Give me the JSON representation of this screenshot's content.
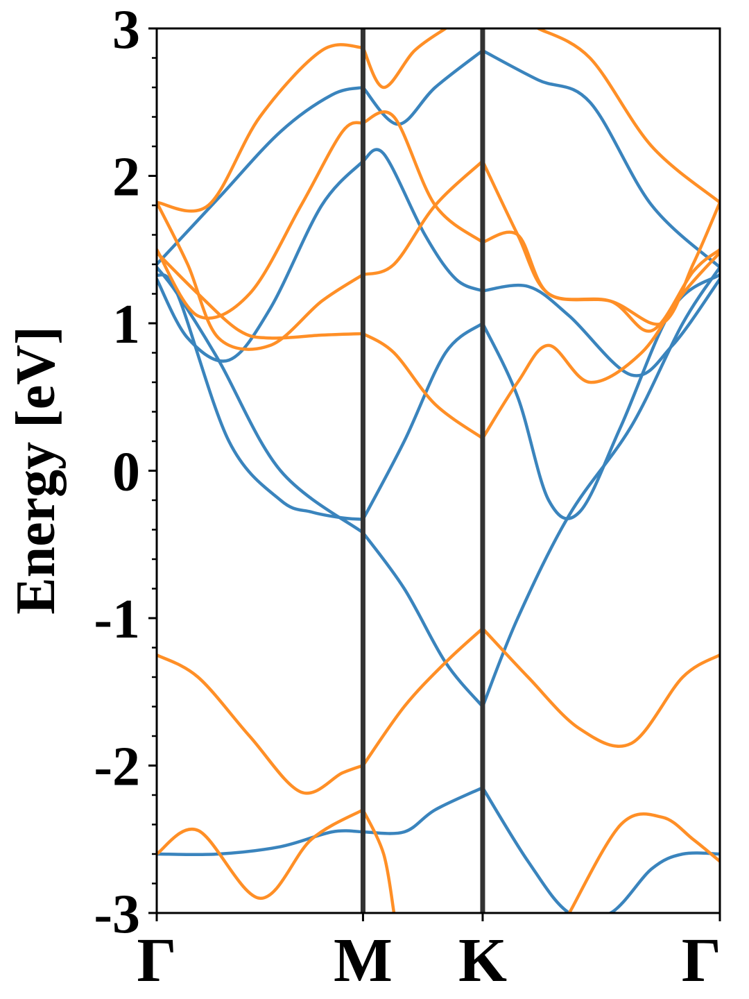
{
  "chart_data": {
    "type": "line",
    "title": "",
    "xlabel": "",
    "ylabel": "Energy [eV]",
    "ylim": [
      -3,
      3
    ],
    "yticks": [
      -3,
      -2,
      -1,
      0,
      1,
      2,
      3
    ],
    "ytick_labels": [
      "-3",
      "-2",
      "-1",
      "0",
      "1",
      "2",
      "3"
    ],
    "minor_ytick_step": 0.2,
    "xrange": [
      0,
      3
    ],
    "high_symmetry_points": [
      {
        "label": "Γ",
        "x": 0
      },
      {
        "label": "M",
        "x": 1
      },
      {
        "label": "K",
        "x": 1.58
      },
      {
        "label": "Γ",
        "x": 2.73
      }
    ],
    "vertical_lines_at": [
      1,
      1.58
    ],
    "grid": false,
    "legend": "none",
    "colors": {
      "blue": "#3a84bd",
      "orange": "#ff8f26",
      "vline": "#333333"
    },
    "series": [
      {
        "color": "blue",
        "x": [
          0,
          0.1,
          0.35,
          0.6,
          0.75,
          0.9,
          1.0
        ],
        "y": [
          1.33,
          1.2,
          0.2,
          -0.2,
          -0.28,
          -0.32,
          -0.33
        ]
      },
      {
        "color": "blue",
        "x": [
          1.0,
          1.2,
          1.4,
          1.58
        ],
        "y": [
          -0.33,
          0.2,
          0.8,
          1.0
        ]
      },
      {
        "color": "blue",
        "x": [
          1.58,
          1.75,
          1.9,
          2.05,
          2.25,
          2.5,
          2.73
        ],
        "y": [
          1.0,
          0.5,
          -0.2,
          -0.28,
          0.3,
          1.1,
          1.33
        ]
      },
      {
        "color": "blue",
        "x": [
          0,
          0.1,
          0.3,
          0.6,
          1.0
        ],
        "y": [
          1.38,
          1.2,
          0.75,
          0.0,
          -0.42
        ]
      },
      {
        "color": "blue",
        "x": [
          1.0,
          1.2,
          1.4,
          1.58
        ],
        "y": [
          -0.42,
          -0.8,
          -1.3,
          -1.6
        ]
      },
      {
        "color": "blue",
        "x": [
          1.58,
          1.75,
          2.0,
          2.3,
          2.55,
          2.73
        ],
        "y": [
          -1.6,
          -1.0,
          -0.3,
          0.3,
          1.0,
          1.38
        ]
      },
      {
        "color": "blue",
        "x": [
          0,
          0.15,
          0.35,
          0.55,
          0.8,
          1.0
        ],
        "y": [
          1.3,
          0.9,
          0.75,
          1.1,
          1.8,
          2.1
        ]
      },
      {
        "color": "blue",
        "x": [
          1.0,
          1.1,
          1.3,
          1.45,
          1.58
        ],
        "y": [
          2.1,
          2.15,
          1.6,
          1.3,
          1.22
        ]
      },
      {
        "color": "blue",
        "x": [
          1.58,
          1.8,
          2.0,
          2.3,
          2.5,
          2.73
        ],
        "y": [
          1.22,
          1.25,
          1.05,
          0.65,
          0.85,
          1.3
        ]
      },
      {
        "color": "blue",
        "x": [
          0,
          0.3,
          0.6,
          0.85,
          1.0
        ],
        "y": [
          1.4,
          1.85,
          2.3,
          2.55,
          2.6
        ]
      },
      {
        "color": "blue",
        "x": [
          1.0,
          1.17,
          1.35,
          1.58
        ],
        "y": [
          2.6,
          2.35,
          2.6,
          2.85
        ]
      },
      {
        "color": "blue",
        "x": [
          1.58,
          1.85,
          2.1,
          2.4,
          2.73
        ],
        "y": [
          2.85,
          2.65,
          2.5,
          1.8,
          1.38
        ]
      },
      {
        "color": "orange",
        "x": [
          0,
          0.2,
          0.4,
          0.55,
          0.8,
          1.0
        ],
        "y": [
          1.48,
          1.2,
          0.95,
          0.9,
          0.92,
          0.93
        ]
      },
      {
        "color": "orange",
        "x": [
          1.0,
          1.15,
          1.35,
          1.58
        ],
        "y": [
          0.93,
          0.8,
          0.45,
          0.22
        ]
      },
      {
        "color": "orange",
        "x": [
          1.58,
          1.75,
          1.9,
          2.1,
          2.35,
          2.55,
          2.73
        ],
        "y": [
          0.22,
          0.6,
          0.85,
          0.6,
          0.8,
          1.2,
          1.48
        ]
      },
      {
        "color": "orange",
        "x": [
          0,
          0.15,
          0.3,
          0.55,
          0.8,
          1.0
        ],
        "y": [
          1.82,
          1.4,
          0.9,
          0.85,
          1.15,
          1.33
        ]
      },
      {
        "color": "orange",
        "x": [
          1.0,
          1.15,
          1.35,
          1.58
        ],
        "y": [
          1.33,
          1.4,
          1.8,
          2.1
        ]
      },
      {
        "color": "orange",
        "x": [
          1.58,
          1.75,
          1.9,
          2.2,
          2.45,
          2.6,
          2.73
        ],
        "y": [
          2.1,
          1.6,
          1.2,
          1.15,
          1.0,
          1.4,
          1.82
        ]
      },
      {
        "color": "orange",
        "x": [
          0,
          0.2,
          0.45,
          0.7,
          0.9,
          1.0
        ],
        "y": [
          1.5,
          1.05,
          1.2,
          1.8,
          2.3,
          2.36
        ]
      },
      {
        "color": "orange",
        "x": [
          1.0,
          1.15,
          1.35,
          1.58
        ],
        "y": [
          2.36,
          2.4,
          1.8,
          1.55
        ]
      },
      {
        "color": "orange",
        "x": [
          1.58,
          1.75,
          1.9,
          2.2,
          2.4,
          2.6,
          2.73
        ],
        "y": [
          1.55,
          1.6,
          1.2,
          1.15,
          0.95,
          1.35,
          1.5
        ]
      },
      {
        "color": "orange",
        "x": [
          0,
          0.25,
          0.5,
          0.8,
          1.0
        ],
        "y": [
          1.82,
          1.8,
          2.4,
          2.85,
          2.87
        ]
      },
      {
        "color": "orange",
        "x": [
          1.0,
          1.1,
          1.25,
          1.4
        ],
        "y": [
          2.87,
          2.6,
          2.85,
          3.0
        ]
      },
      {
        "color": "orange",
        "x": [
          1.85,
          2.1,
          2.4,
          2.73
        ],
        "y": [
          3.0,
          2.8,
          2.2,
          1.82
        ]
      },
      {
        "color": "orange",
        "x": [
          0,
          0.2,
          0.45,
          0.7,
          0.9,
          1.0
        ],
        "y": [
          -1.25,
          -1.4,
          -1.8,
          -2.18,
          -2.05,
          -2.0
        ]
      },
      {
        "color": "orange",
        "x": [
          1.0,
          1.2,
          1.4,
          1.58
        ],
        "y": [
          -2.0,
          -1.6,
          -1.3,
          -1.07
        ]
      },
      {
        "color": "orange",
        "x": [
          1.58,
          1.8,
          2.05,
          2.3,
          2.55,
          2.73
        ],
        "y": [
          -1.07,
          -1.4,
          -1.75,
          -1.85,
          -1.4,
          -1.25
        ]
      },
      {
        "color": "blue",
        "x": [
          0,
          0.3,
          0.6,
          0.85,
          1.0
        ],
        "y": [
          -2.6,
          -2.6,
          -2.55,
          -2.45,
          -2.45
        ]
      },
      {
        "color": "blue",
        "x": [
          1.0,
          1.2,
          1.35,
          1.58
        ],
        "y": [
          -2.45,
          -2.45,
          -2.3,
          -2.15
        ]
      },
      {
        "color": "blue",
        "x": [
          1.58,
          1.8,
          2.0,
          2.2,
          2.4,
          2.55,
          2.73
        ],
        "y": [
          -2.15,
          -2.65,
          -3.0,
          -3.0,
          -2.7,
          -2.6,
          -2.6
        ]
      },
      {
        "color": "orange",
        "x": [
          0,
          0.2,
          0.5,
          0.75,
          1.0
        ],
        "y": [
          -2.6,
          -2.44,
          -2.9,
          -2.5,
          -2.3
        ]
      },
      {
        "color": "orange",
        "x": [
          1.0,
          1.1,
          1.15
        ],
        "y": [
          -2.3,
          -2.6,
          -3.0
        ]
      },
      {
        "color": "orange",
        "x": [
          2.0,
          2.25,
          2.45,
          2.6,
          2.73
        ],
        "y": [
          -3.0,
          -2.4,
          -2.35,
          -2.5,
          -2.65
        ]
      }
    ]
  }
}
